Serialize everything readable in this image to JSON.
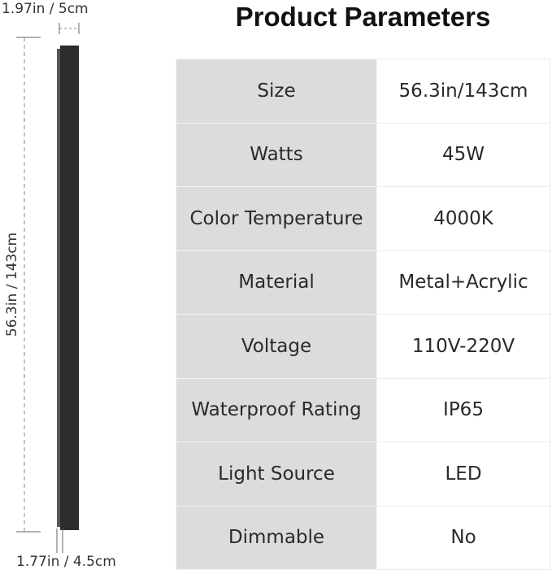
{
  "header": {
    "title": "Product Parameters"
  },
  "dimensions": {
    "top_width": "1.97in / 5cm",
    "height": "56.3in / 143cm",
    "bottom_width": "1.77in / 4.5cm"
  },
  "table": {
    "rows": [
      [
        "Size",
        "56.3in/143cm"
      ],
      [
        "Watts",
        "45W"
      ],
      [
        "Color Temperature",
        "4000K"
      ],
      [
        "Material",
        "Metal+Acrylic"
      ],
      [
        "Voltage",
        "110V-220V"
      ],
      [
        "Waterproof Rating",
        "IP65"
      ],
      [
        "Light Source",
        "LED"
      ],
      [
        "Dimmable",
        "No"
      ]
    ]
  }
}
